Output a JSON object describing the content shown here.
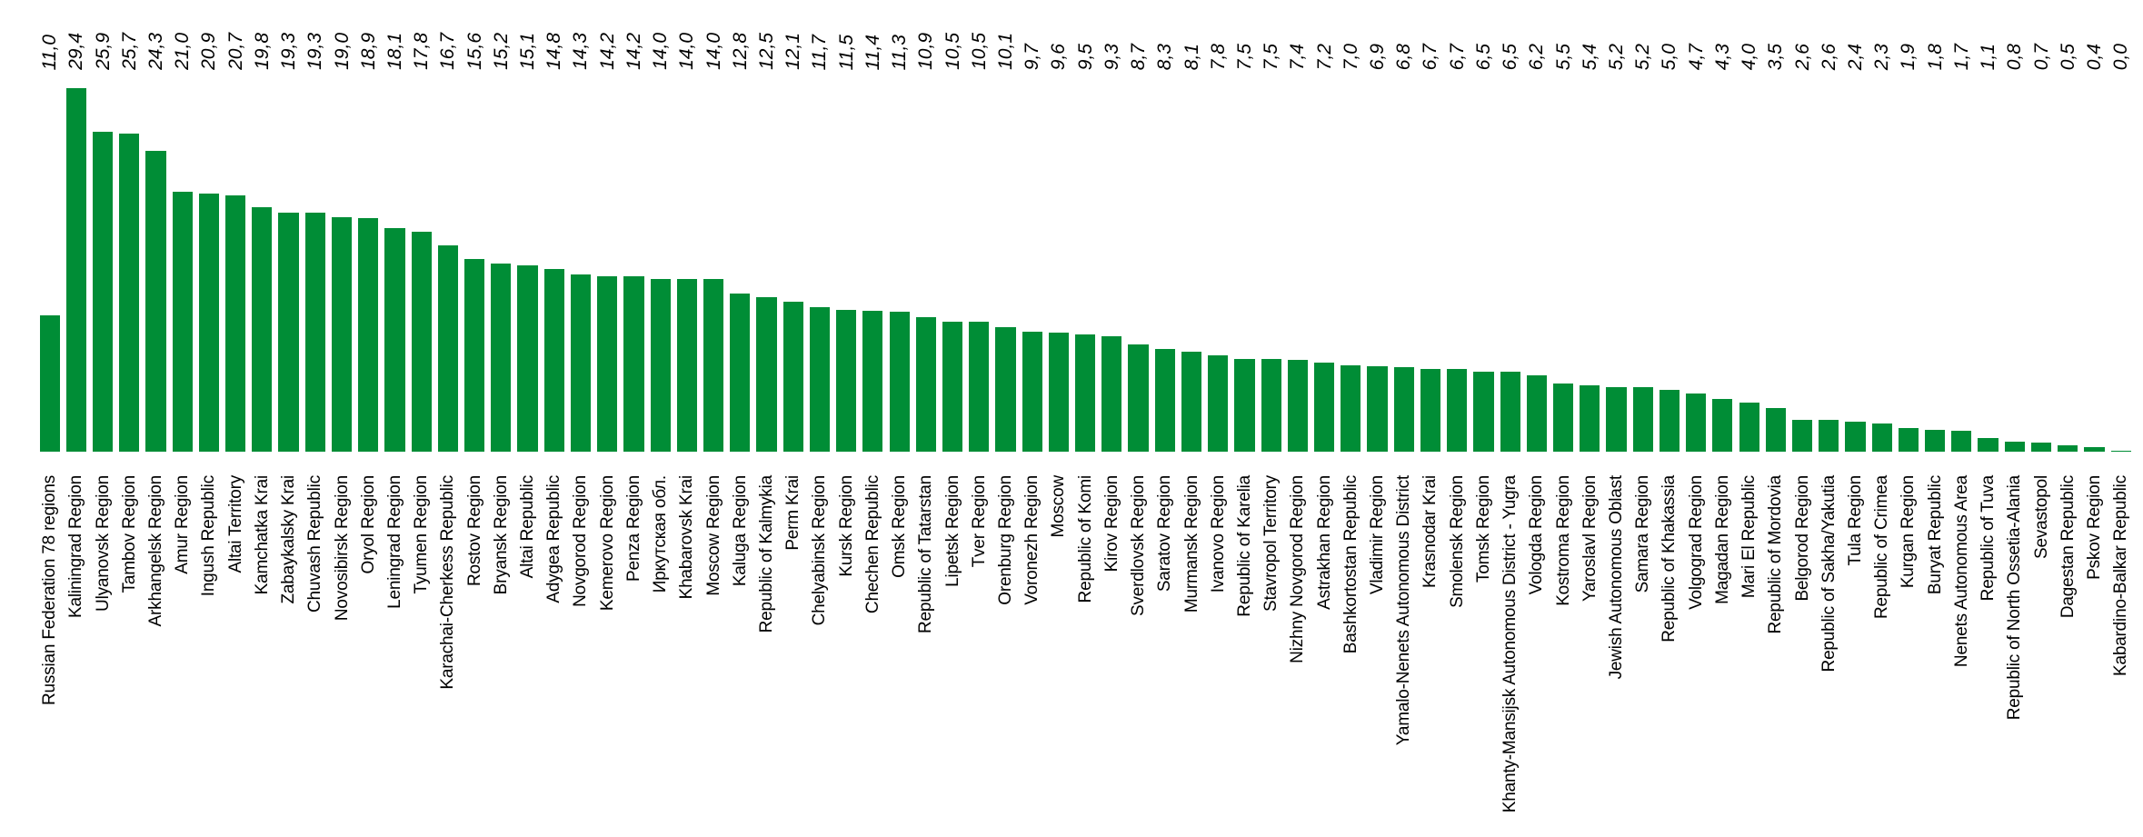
{
  "chart_data": {
    "type": "bar",
    "title": "",
    "xlabel": "",
    "ylabel": "",
    "legend": "none",
    "grid": false,
    "axis_lines": false,
    "orientation": "vertical",
    "decimal_separator": ",",
    "bar_color": "#008D36",
    "text_color": "#000000",
    "background_color": "#FFFFFF",
    "ylim": [
      0,
      29.4
    ],
    "value_label_position": "rotated-row-above-plot",
    "category_label_position": "rotated-below-plot-top-aligned",
    "categories": [
      "Russian Federation 78 regions",
      "Kaliningrad Region",
      "Ulyanovsk Region",
      "Tambov Region",
      "Arkhangelsk Region",
      "Amur Region",
      "Ingush Republic",
      "Altai Territory",
      "Kamchatka Krai",
      "Zabaykalsky Krai",
      "Chuvash Republic",
      "Novosibirsk Region",
      "Oryol Region",
      "Leningrad Region",
      "Tyumen Region",
      "Karachai-Cherkess Republic",
      "Rostov Region",
      "Bryansk Region",
      "Altai Republic",
      "Adygea Republic",
      "Novgorod Region",
      "Kemerovo Region",
      "Penza Region",
      "Иркутская обл.",
      "Khabarovsk Krai",
      "Moscow Region",
      "Kaluga Region",
      "Republic of Kalmykia",
      "Perm Krai",
      "Chelyabinsk Region",
      "Kursk Region",
      "Chechen Republic",
      "Omsk Region",
      "Republic of Tatarstan",
      "Lipetsk Region",
      "Tver Region",
      "Orenburg Region",
      "Voronezh Region",
      "Moscow",
      "Republic of Komi",
      "Kirov Region",
      "Sverdlovsk Region",
      "Saratov Region",
      "Murmansk Region",
      "Ivanovo Region",
      "Republic of Karelia",
      "Stavropol Territory",
      "Nizhny Novgorod Region",
      "Astrakhan Region",
      "Bashkortostan Republic",
      "Vladimir Region",
      "Yamalo-Nenets Autonomous District",
      "Krasnodar Krai",
      "Smolensk Region",
      "Tomsk Region",
      "Khanty-Mansijsk Autonomous District - Yugra",
      "Vologda Region",
      "Kostroma Region",
      "Yaroslavl Region",
      "Jewish Autonomous Oblast",
      "Samara Region",
      "Republic of Khakassia",
      "Volgograd Region",
      "Magadan Region",
      "Mari El Republic",
      "Republic of Mordovia",
      "Belgorod Region",
      "Republic of Sakha/Yakutia",
      "Tula Region",
      "Republic of Crimea",
      "Kurgan Region",
      "Buryat Republic",
      "Nenets Autonomous Area",
      "Republic of Tuva",
      "Republic of North Ossetia-Alania",
      "Sevastopol",
      "Dagestan Republic",
      "Pskov Region",
      "Kabardino-Balkar Republic"
    ],
    "values": [
      11.0,
      29.4,
      25.9,
      25.7,
      24.3,
      21.0,
      20.9,
      20.7,
      19.8,
      19.3,
      19.3,
      19.0,
      18.9,
      18.1,
      17.8,
      16.7,
      15.6,
      15.2,
      15.1,
      14.8,
      14.3,
      14.2,
      14.2,
      14.0,
      14.0,
      14.0,
      12.8,
      12.5,
      12.1,
      11.7,
      11.5,
      11.4,
      11.3,
      10.9,
      10.5,
      10.5,
      10.1,
      9.7,
      9.6,
      9.5,
      9.3,
      8.7,
      8.3,
      8.1,
      7.8,
      7.5,
      7.5,
      7.4,
      7.2,
      7.0,
      6.9,
      6.8,
      6.7,
      6.7,
      6.5,
      6.5,
      6.2,
      5.5,
      5.4,
      5.2,
      5.2,
      5.0,
      4.7,
      4.3,
      4.0,
      3.5,
      2.6,
      2.6,
      2.4,
      2.3,
      1.9,
      1.8,
      1.7,
      1.1,
      0.8,
      0.7,
      0.5,
      0.4,
      0.0
    ],
    "value_labels": [
      "11,0",
      "29,4",
      "25,9",
      "25,7",
      "24,3",
      "21,0",
      "20,9",
      "20,7",
      "19,8",
      "19,3",
      "19,3",
      "19,0",
      "18,9",
      "18,1",
      "17,8",
      "16,7",
      "15,6",
      "15,2",
      "15,1",
      "14,8",
      "14,3",
      "14,2",
      "14,2",
      "14,0",
      "14,0",
      "14,0",
      "12,8",
      "12,5",
      "12,1",
      "11,7",
      "11,5",
      "11,4",
      "11,3",
      "10,9",
      "10,5",
      "10,5",
      "10,1",
      "9,7",
      "9,6",
      "9,5",
      "9,3",
      "8,7",
      "8,3",
      "8,1",
      "7,8",
      "7,5",
      "7,5",
      "7,4",
      "7,2",
      "7,0",
      "6,9",
      "6,8",
      "6,7",
      "6,7",
      "6,5",
      "6,5",
      "6,2",
      "5,5",
      "5,4",
      "5,2",
      "5,2",
      "5,0",
      "4,7",
      "4,3",
      "4,0",
      "3,5",
      "2,6",
      "2,6",
      "2,4",
      "2,3",
      "1,9",
      "1,8",
      "1,7",
      "1,1",
      "0,8",
      "0,7",
      "0,5",
      "0,4",
      "0,0"
    ]
  }
}
